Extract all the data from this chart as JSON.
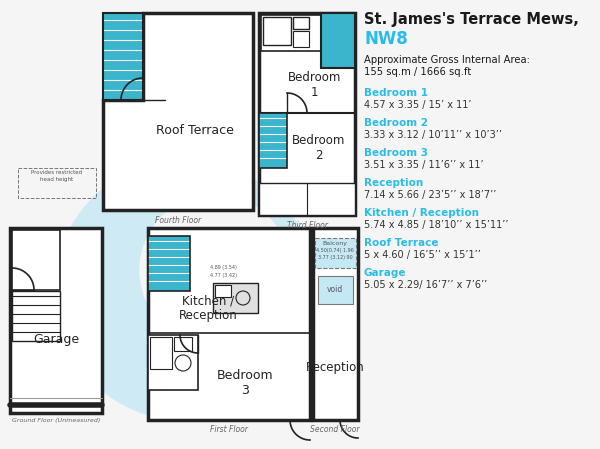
{
  "title_line1": "St. James's Terrace Mews,",
  "title_line2": "NW8",
  "title_color": "#1a1a1a",
  "title2_color": "#29bce8",
  "rooms": [
    {
      "name": "Bedroom 1",
      "dims": "4.57 x 3.35 / 15’ x 11’"
    },
    {
      "name": "Bedroom 2",
      "dims": "3.33 x 3.12 / 10’11’’ x 10’3’’"
    },
    {
      "name": "Bedroom 3",
      "dims": "3.51 x 3.35 / 11’6’’ x 11’"
    },
    {
      "name": "Reception",
      "dims": "7.14 x 5.66 / 23’5’’ x 18’7’’"
    },
    {
      "name": "Kitchen / Reception",
      "dims": "5.74 x 4.85 / 18’10’’ x 15’11’’"
    },
    {
      "name": "Roof Terrace",
      "dims": "5 x 4.60 / 16’5’’ x 15’1’’"
    },
    {
      "name": "Garage",
      "dims": "5.05 x 2.29/ 16’7’’ x 7’6’’"
    }
  ],
  "room_name_color": "#29bce8",
  "room_dims_color": "#333333",
  "bg_color": "#f5f5f5",
  "watermark_color": "#cdeaf5",
  "floor_label_color": "#666666",
  "wall_color": "#222222",
  "teal_fill": "#3ab5cc",
  "light_blue_fill": "#c5e8f5"
}
